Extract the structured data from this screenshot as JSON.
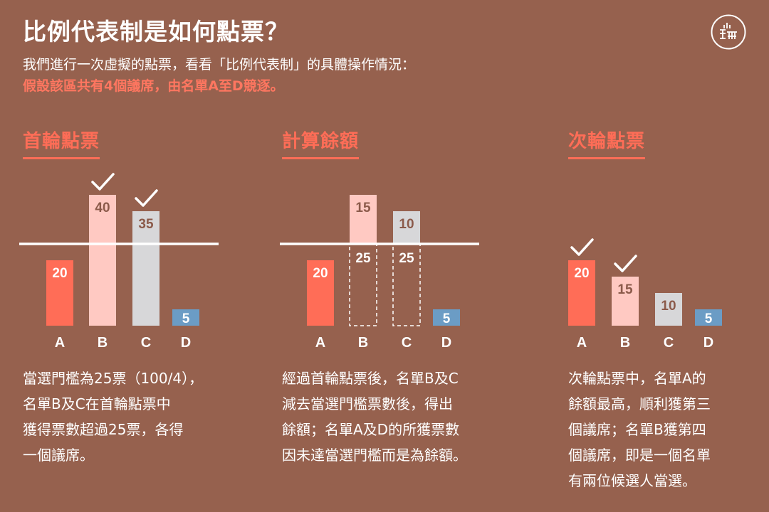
{
  "title": "比例代表制是如何點票？",
  "logo_text": "端",
  "intro": {
    "line1": "我們進行一次虛擬的點票，看看「比例代表制」的具體操作情況：",
    "line2": "假設該區共有4個議席，由名單A至D競逐。"
  },
  "colors": {
    "A": "#ff6d57",
    "B": "#ffc9c2",
    "C": "#d7d7d9",
    "D": "#6b9cc5",
    "label_dark": "#8b5a4a",
    "accent": "#ff6d57"
  },
  "panels": [
    {
      "id": "first",
      "title": "首輪點票",
      "desc_lines": [
        "當選門檻為25票（100/4），",
        "名單B及C在首輪點票中",
        "獲得票數超過25票，各得",
        "一個議席。"
      ]
    },
    {
      "id": "remainder",
      "title": "計算餘額",
      "desc_lines": [
        "經過首輪點票後，名單B及C",
        "減去當選門檻票數後，得出",
        "餘額；名單A及D的所獲票數",
        "因未達當選門檻而是為餘額。"
      ]
    },
    {
      "id": "second",
      "title": "次輪點票",
      "desc_lines": [
        "次輪點票中，名單A的",
        "餘額最高，順利獲第三",
        "個議席；名單B獲第四",
        "個議席，即是一個名單",
        "有兩位候選人當選。"
      ]
    }
  ],
  "chart_data": [
    {
      "type": "bar",
      "title": "首輪點票",
      "categories": [
        "A",
        "B",
        "C",
        "D"
      ],
      "values": [
        20,
        40,
        35,
        5
      ],
      "threshold": 25,
      "elected": [
        "B",
        "C"
      ]
    },
    {
      "type": "bar",
      "title": "計算餘額",
      "categories": [
        "A",
        "B",
        "C",
        "D"
      ],
      "values": [
        20,
        15,
        10,
        5
      ],
      "removed": [
        0,
        25,
        25,
        0
      ],
      "threshold": 25,
      "elected": []
    },
    {
      "type": "bar",
      "title": "次輪點票",
      "categories": [
        "A",
        "B",
        "C",
        "D"
      ],
      "values": [
        20,
        15,
        10,
        5
      ],
      "elected": [
        "A",
        "B"
      ]
    }
  ]
}
